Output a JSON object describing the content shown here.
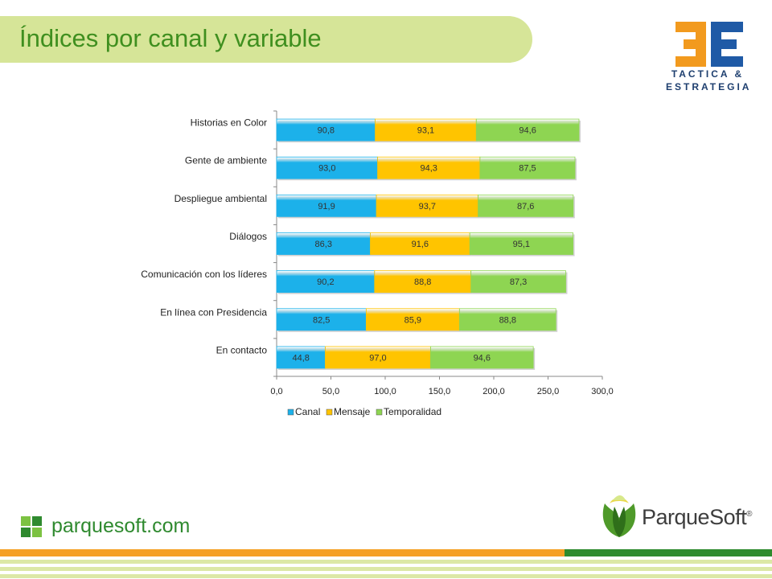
{
  "header": {
    "title": "Índices por canal y variable"
  },
  "logo_3e": {
    "line1": "TACTICA &",
    "line2": "ESTRATEGIA",
    "colors": {
      "orange": "#f29a1e",
      "blue": "#1f5aa6"
    }
  },
  "footer": {
    "url": "parquesoft.com",
    "brand": "ParqueSoft",
    "registered": "®"
  },
  "colors": {
    "canal": "#1cb1ea",
    "mensaje": "#ffc400",
    "temporalidad": "#8ed552",
    "title": "#3f8f1f",
    "band": "#d6e598"
  },
  "chart_data": {
    "type": "bar",
    "orientation": "horizontal",
    "stacked": true,
    "categories": [
      "Historias en Color",
      "Gente de ambiente",
      "Despliegue ambiental",
      "Diálogos",
      "Comunicación con los líderes",
      "En línea con Presidencia",
      "En contacto"
    ],
    "series": [
      {
        "name": "Canal",
        "values": [
          90.8,
          93.0,
          91.9,
          86.3,
          90.2,
          82.5,
          44.8
        ],
        "labels": [
          "90,8",
          "93,0",
          "91,9",
          "86,3",
          "90,2",
          "82,5",
          "44,8"
        ],
        "color": "#1cb1ea"
      },
      {
        "name": "Mensaje",
        "values": [
          93.1,
          94.3,
          93.7,
          91.6,
          88.8,
          85.9,
          97.0
        ],
        "labels": [
          "93,1",
          "94,3",
          "93,7",
          "91,6",
          "88,8",
          "85,9",
          "97,0"
        ],
        "color": "#ffc400"
      },
      {
        "name": "Temporalidad",
        "values": [
          94.6,
          87.5,
          87.6,
          95.1,
          87.3,
          88.8,
          94.6
        ],
        "labels": [
          "94,6",
          "87,5",
          "87,6",
          "95,1",
          "87,3",
          "88,8",
          "94,6"
        ],
        "color": "#8ed552"
      }
    ],
    "xlim": [
      0,
      300
    ],
    "xticks": [
      0,
      50,
      100,
      150,
      200,
      250,
      300
    ],
    "xtick_labels": [
      "0,0",
      "50,0",
      "100,0",
      "150,0",
      "200,0",
      "250,0",
      "300,0"
    ],
    "legend_position": "bottom",
    "grid": false
  }
}
